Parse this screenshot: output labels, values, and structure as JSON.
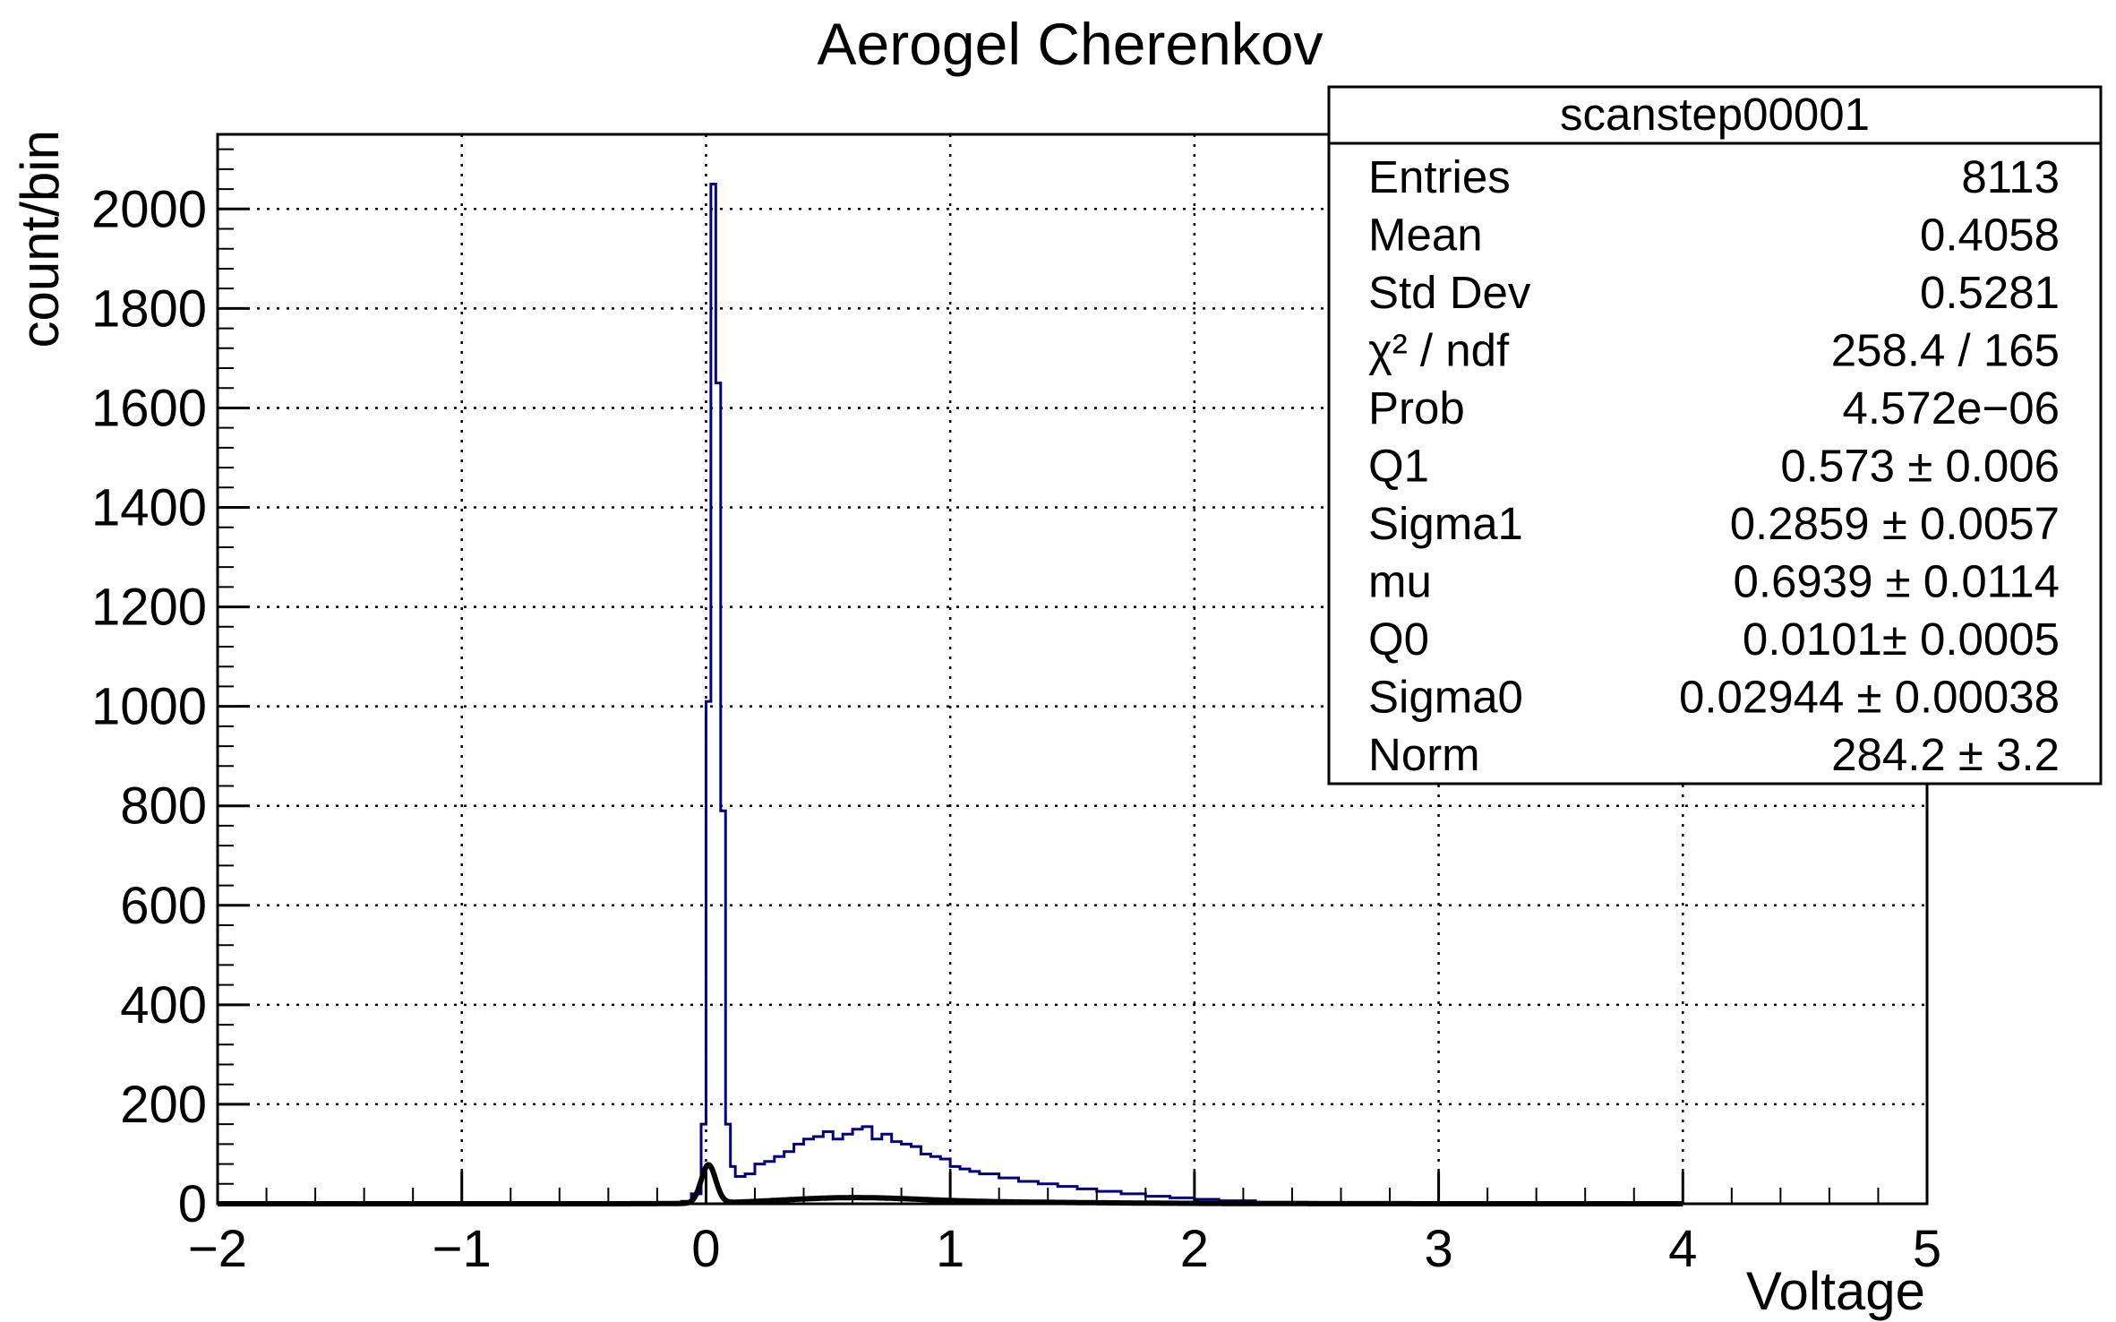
{
  "chart_data": {
    "type": "bar",
    "title": "Aerogel Cherenkov",
    "xlabel": "Voltage",
    "ylabel": "count/bin",
    "xlim": [
      -2,
      5
    ],
    "ylim": [
      0,
      2150
    ],
    "grid": true,
    "x_ticks": [
      "−2",
      "−1",
      "0",
      "1",
      "2",
      "3",
      "4",
      "5"
    ],
    "y_ticks": [
      "0",
      "200",
      "400",
      "600",
      "800",
      "1000",
      "1200",
      "1400",
      "1600",
      "1800",
      "2000"
    ],
    "histogram": {
      "color": "#000080",
      "bin_width": 0.04,
      "bins": [
        [
          -0.1,
          -0.06,
          5
        ],
        [
          -0.06,
          -0.02,
          20
        ],
        [
          -0.02,
          0.0,
          160
        ],
        [
          0.0,
          0.02,
          1010
        ],
        [
          0.02,
          0.04,
          2050
        ],
        [
          0.04,
          0.06,
          1650
        ],
        [
          0.06,
          0.08,
          790
        ],
        [
          0.08,
          0.1,
          160
        ],
        [
          0.1,
          0.12,
          75
        ],
        [
          0.12,
          0.16,
          55
        ],
        [
          0.16,
          0.2,
          60
        ],
        [
          0.2,
          0.24,
          80
        ],
        [
          0.24,
          0.28,
          85
        ],
        [
          0.28,
          0.32,
          95
        ],
        [
          0.32,
          0.36,
          105
        ],
        [
          0.36,
          0.4,
          120
        ],
        [
          0.4,
          0.44,
          130
        ],
        [
          0.44,
          0.48,
          135
        ],
        [
          0.48,
          0.52,
          145
        ],
        [
          0.52,
          0.56,
          130
        ],
        [
          0.56,
          0.6,
          140
        ],
        [
          0.6,
          0.64,
          150
        ],
        [
          0.64,
          0.68,
          155
        ],
        [
          0.68,
          0.72,
          130
        ],
        [
          0.72,
          0.76,
          140
        ],
        [
          0.76,
          0.8,
          125
        ],
        [
          0.8,
          0.84,
          120
        ],
        [
          0.84,
          0.88,
          115
        ],
        [
          0.88,
          0.92,
          100
        ],
        [
          0.92,
          0.96,
          95
        ],
        [
          0.96,
          1.0,
          90
        ],
        [
          1.0,
          1.04,
          75
        ],
        [
          1.04,
          1.08,
          70
        ],
        [
          1.08,
          1.12,
          65
        ],
        [
          1.12,
          1.2,
          60
        ],
        [
          1.2,
          1.28,
          52
        ],
        [
          1.28,
          1.36,
          45
        ],
        [
          1.36,
          1.44,
          40
        ],
        [
          1.44,
          1.52,
          35
        ],
        [
          1.52,
          1.6,
          30
        ],
        [
          1.6,
          1.7,
          25
        ],
        [
          1.7,
          1.8,
          20
        ],
        [
          1.8,
          1.9,
          15
        ],
        [
          1.9,
          2.0,
          12
        ],
        [
          2.0,
          2.1,
          9
        ],
        [
          2.1,
          2.25,
          6
        ],
        [
          2.25,
          2.5,
          3
        ],
        [
          2.5,
          3.0,
          1
        ]
      ]
    },
    "fit_function": {
      "color": "#000000",
      "params": {
        "Q1": 0.573,
        "Sigma1": 0.2859,
        "mu": 0.6939,
        "Q0": 0.0101,
        "Sigma0": 0.02944,
        "Norm": 284.2
      }
    },
    "stats_box": {
      "title": "scanstep00001",
      "rows": [
        {
          "label": "Entries",
          "value": "8113"
        },
        {
          "label": "Mean",
          "value": "0.4058"
        },
        {
          "label": "Std Dev",
          "value": "0.5281"
        },
        {
          "label": "χ² / ndf",
          "value": "258.4 / 165"
        },
        {
          "label": "Prob",
          "value": "4.572e−06"
        },
        {
          "label": "Q1",
          "value": "0.573 ± 0.006"
        },
        {
          "label": "Sigma1",
          "value": "0.2859 ± 0.0057"
        },
        {
          "label": "mu",
          "value": "0.6939 ± 0.0114"
        },
        {
          "label": "Q0",
          "value": "0.0101± 0.0005"
        },
        {
          "label": "Sigma0",
          "value": "0.02944 ± 0.00038"
        },
        {
          "label": "Norm",
          "value": "284.2 ± 3.2"
        }
      ]
    }
  }
}
